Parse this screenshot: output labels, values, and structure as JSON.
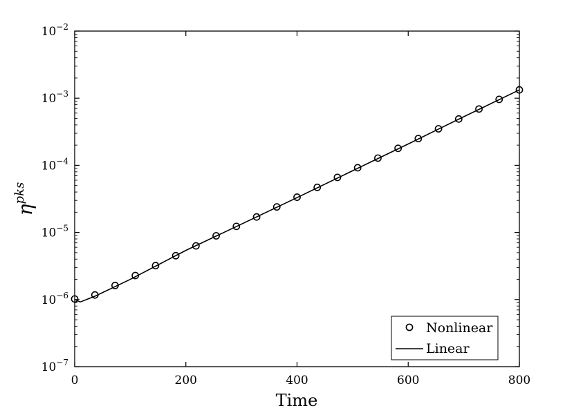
{
  "chart_data": {
    "type": "line",
    "title": "",
    "xlabel": "Time",
    "ylabel": {
      "base": "η",
      "superscript": "pks"
    },
    "xlim": [
      0,
      800
    ],
    "ylim": [
      1e-07,
      0.01
    ],
    "yscale": "log",
    "grid": false,
    "legend_position": "bottom-right",
    "x_ticks": [
      "0",
      "200",
      "400",
      "600",
      "800"
    ],
    "y_ticks": [
      {
        "base": "10",
        "exp": "−7"
      },
      {
        "base": "10",
        "exp": "−6"
      },
      {
        "base": "10",
        "exp": "−5"
      },
      {
        "base": "10",
        "exp": "−4"
      },
      {
        "base": "10",
        "exp": "−3"
      },
      {
        "base": "10",
        "exp": "−2"
      }
    ],
    "series": [
      {
        "name": "Nonlinear",
        "style": "markers",
        "marker": "open-circle",
        "x": [
          0,
          36.4,
          72.7,
          109.1,
          145.5,
          181.8,
          218.2,
          254.5,
          290.9,
          327.3,
          363.6,
          400,
          436.4,
          472.7,
          509.1,
          545.5,
          581.8,
          618.2,
          654.5,
          690.9,
          727.3,
          763.6,
          800
        ],
        "y": [
          1.02e-06,
          1.17e-06,
          1.62e-06,
          2.28e-06,
          3.2e-06,
          4.5e-06,
          6.3e-06,
          8.9e-06,
          1.23e-05,
          1.7e-05,
          2.4e-05,
          3.35e-05,
          4.7e-05,
          6.6e-05,
          9.2e-05,
          0.000128,
          0.000179,
          0.00025,
          0.00035,
          0.00049,
          0.00069,
          0.00096,
          0.00133
        ]
      },
      {
        "name": "Linear",
        "style": "line",
        "x": [
          0,
          10,
          36.4,
          100,
          200,
          300,
          400,
          500,
          600,
          700,
          800
        ],
        "y": [
          1e-06,
          9.2e-07,
          1.12e-06,
          2e-06,
          5.4e-06,
          1.33e-05,
          3.3e-05,
          8.3e-05,
          0.000208,
          0.00053,
          0.00133
        ]
      }
    ]
  }
}
